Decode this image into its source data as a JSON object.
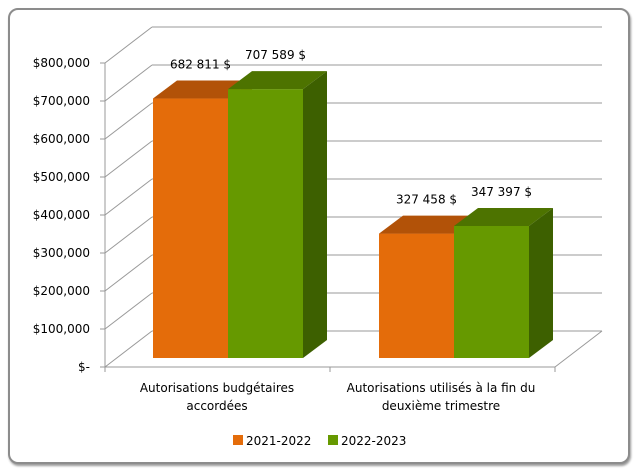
{
  "chart_data": {
    "type": "bar",
    "title": "",
    "categories": [
      "Autorisations budgétaires accordées",
      "Autorisations utilisés à la fin du deuxième trimestre"
    ],
    "category_lines": [
      [
        "Autorisations budgétaires",
        "accordées"
      ],
      [
        "Autorisations utilisés à la fin du",
        "deuxième trimestre"
      ]
    ],
    "series": [
      {
        "name": "2021-2022",
        "color": "#e46c0a",
        "top": "#b25208",
        "side": "#b25208",
        "values": [
          682811,
          327458
        ],
        "labels": [
          "682 811 $",
          "327 458 $"
        ]
      },
      {
        "name": "2022-2023",
        "color": "#669900",
        "top": "#4d7300",
        "side": "#3d6000",
        "values": [
          707589,
          347397
        ],
        "labels": [
          "707 589 $",
          "347 397 $"
        ]
      }
    ],
    "ylim": [
      0,
      800000
    ],
    "yticks": [
      0,
      100000,
      200000,
      300000,
      400000,
      500000,
      600000,
      700000,
      800000
    ],
    "ytick_labels": [
      "$-",
      "$100,000",
      "$200,000",
      "$300,000",
      "$400,000",
      "$500,000",
      "$600,000",
      "$700,000",
      "$800,000"
    ],
    "grid": true,
    "legend": "bottom"
  }
}
